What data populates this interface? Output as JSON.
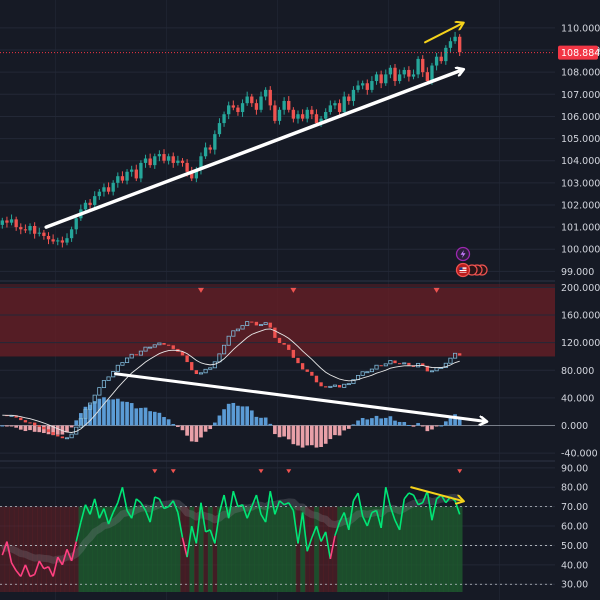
{
  "theme": {
    "background": "#161a25",
    "grid": "#232836",
    "axis_text": "#d1d4dc",
    "bull": "#26a69a",
    "bear": "#ef5350",
    "price_line": "#f23645",
    "annotation_white": "#ffffff",
    "annotation_yellow": "#f5d21b",
    "oscillator_line": "#00e676",
    "oscillator_low": "#ff4081",
    "histogram_pos": "#5b9bd5",
    "histogram_neg": "#e8a0a8",
    "zone_red": "#6b1f26",
    "zone_green": "#1e5a2e"
  },
  "icons": {
    "lightning": "lightning-icon",
    "flag_events": "us-flag-events-icon"
  },
  "chart_data": [
    {
      "type": "candlestick",
      "panel": "price",
      "ylim": [
        98.7,
        110.9
      ],
      "ticks": [
        99,
        100,
        101,
        102,
        103,
        104,
        105,
        106,
        107,
        108,
        109,
        110
      ],
      "tick_labels": [
        "99.000",
        "100.000",
        "101.000",
        "102.000",
        "103.000",
        "104.000",
        "105.000",
        "106.000",
        "107.000",
        "108.000",
        "109.000",
        "110.000"
      ],
      "last_price": 108.884,
      "last_price_label": "108.884",
      "num_candles": 100,
      "close": [
        101.3,
        101.2,
        101.35,
        101.0,
        100.9,
        100.85,
        101.05,
        100.7,
        100.75,
        100.6,
        100.45,
        100.35,
        100.4,
        100.3,
        100.5,
        100.9,
        101.4,
        101.8,
        102.1,
        102.0,
        102.4,
        102.6,
        102.8,
        102.6,
        103.0,
        103.3,
        103.1,
        103.5,
        103.6,
        103.2,
        103.9,
        104.1,
        103.8,
        104.2,
        104.3,
        104.0,
        104.2,
        103.9,
        104.0,
        103.9,
        103.5,
        103.2,
        103.6,
        104.2,
        104.6,
        104.5,
        105.2,
        105.7,
        106.1,
        106.5,
        106.4,
        106.2,
        106.6,
        106.9,
        106.6,
        106.3,
        106.9,
        107.2,
        106.5,
        105.8,
        106.3,
        106.7,
        106.3,
        105.9,
        106.1,
        105.9,
        106.3,
        106.1,
        105.7,
        105.9,
        106.2,
        106.5,
        106.6,
        106.2,
        106.9,
        106.7,
        107.2,
        107.4,
        107.5,
        107.2,
        107.6,
        107.9,
        107.5,
        107.9,
        108.2,
        107.6,
        107.9,
        108.1,
        107.8,
        107.9,
        108.6,
        108.0,
        107.6,
        108.3,
        108.7,
        108.5,
        109.1,
        109.4,
        109.6,
        108.9
      ],
      "annotation_arrows": [
        {
          "color": "white",
          "from": [
            10,
            101.0
          ],
          "to": [
            100,
            108.1
          ]
        },
        {
          "color": "yellow",
          "from": [
            92,
            109.35
          ],
          "to": [
            100,
            110.2
          ]
        }
      ]
    },
    {
      "type": "macd",
      "panel": "oscillator",
      "ylim": [
        -50,
        205
      ],
      "ticks": [
        -40,
        0,
        40,
        80,
        120,
        160,
        200
      ],
      "tick_labels": [
        "-40.000",
        "0.000",
        "40.000",
        "80.000",
        "120.000",
        "160.000",
        "200.000"
      ],
      "zones": [
        {
          "from": 100,
          "to": 200,
          "label": "overbought"
        }
      ],
      "signal_markers_x": [
        43,
        63,
        94
      ],
      "annotation_arrows": [
        {
          "color": "white",
          "from": [
            25,
            75
          ],
          "to": [
            105,
            6
          ]
        }
      ]
    },
    {
      "type": "rsi",
      "panel": "rsi",
      "ylim": [
        26,
        93
      ],
      "ticks": [
        30,
        40,
        50,
        60,
        70,
        80,
        90
      ],
      "tick_labels": [
        "30.00",
        "40.00",
        "50.00",
        "60.00",
        "70.00",
        "80.00",
        "90.00"
      ],
      "levels": [
        70,
        50,
        30
      ],
      "values": [
        45,
        52,
        41,
        37,
        34,
        40,
        34,
        35,
        42,
        38,
        39,
        34,
        44,
        40,
        48,
        42,
        52,
        62,
        71,
        66,
        74,
        64,
        69,
        61,
        67,
        72,
        80,
        68,
        64,
        74,
        72,
        68,
        62,
        75,
        74,
        69,
        70,
        73,
        67,
        54,
        44,
        60,
        51,
        72,
        57,
        58,
        51,
        67,
        76,
        64,
        78,
        70,
        71,
        64,
        70,
        76,
        66,
        62,
        78,
        66,
        73,
        71,
        72,
        68,
        51,
        67,
        47,
        54,
        60,
        52,
        57,
        43,
        55,
        62,
        67,
        58,
        73,
        77,
        65,
        60,
        67,
        68,
        59,
        80,
        70,
        63,
        58,
        74,
        77,
        76,
        71,
        72,
        78,
        63,
        74,
        76,
        72,
        75,
        73,
        66
      ],
      "signal_markers_x": [
        33,
        37,
        56,
        62,
        99
      ],
      "annotation_arrows": [
        {
          "color": "yellow",
          "from": [
            89,
            80
          ],
          "to": [
            100,
            73
          ]
        }
      ]
    }
  ]
}
